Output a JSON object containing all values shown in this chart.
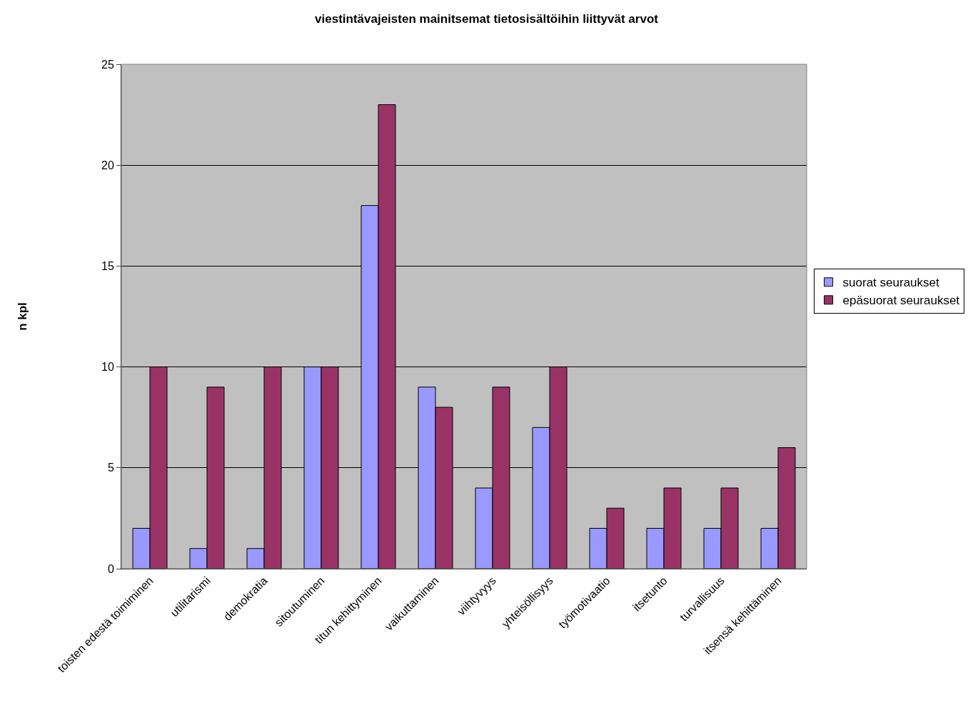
{
  "chart_data": {
    "type": "bar",
    "title": "viestintävajeisten mainitsemat tietosisältöihin liittyvät arvot",
    "ylabel": "n kpl",
    "categories": [
      "toisten edestä toimiminen",
      "utilitarismi",
      "demokratia",
      "sitoutuminen",
      "titun kehittyminen",
      "vaikuttaminen",
      "viihtyvyys",
      "yhteisöllisyys",
      "työmotivaatio",
      "itsetunto",
      "turvallisuus",
      "itsensä kehittäminen"
    ],
    "series": [
      {
        "name": "suorat seuraukset",
        "color": "#9999ff",
        "values": [
          2,
          1,
          1,
          10,
          18,
          9,
          4,
          7,
          2,
          2,
          2,
          2
        ]
      },
      {
        "name": "epäsuorat seuraukset",
        "color": "#993366",
        "values": [
          10,
          9,
          10,
          10,
          23,
          8,
          9,
          10,
          3,
          4,
          4,
          6
        ]
      }
    ],
    "ylim": [
      0,
      25
    ],
    "yticks": [
      0,
      5,
      10,
      15,
      20,
      25
    ],
    "grid": "y",
    "legend": "right"
  }
}
